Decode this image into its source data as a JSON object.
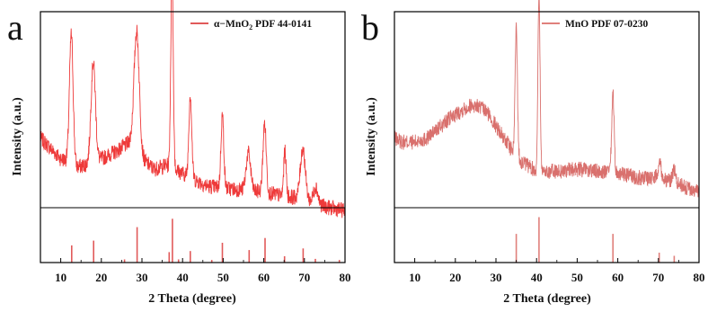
{
  "chart_data": [
    {
      "type": "line",
      "panel_label": "a",
      "xlabel": "2 Theta (degree)",
      "ylabel": "Intensity (a.u.)",
      "xlim": [
        5,
        80
      ],
      "xticks": [
        10,
        20,
        30,
        40,
        50,
        60,
        70,
        80
      ],
      "y_tick_labels_shown": false,
      "series": [
        {
          "name": "",
          "color": "#ee3a3a",
          "baseline_points": [
            [
              5,
              0.4
            ],
            [
              8,
              0.34
            ],
            [
              10,
              0.3
            ],
            [
              12,
              0.29
            ],
            [
              14,
              0.26
            ],
            [
              16,
              0.27
            ],
            [
              20,
              0.3
            ],
            [
              24,
              0.34
            ],
            [
              27,
              0.38
            ],
            [
              30,
              0.3
            ],
            [
              33,
              0.25
            ],
            [
              36,
              0.27
            ],
            [
              39,
              0.24
            ],
            [
              42,
              0.21
            ],
            [
              46,
              0.17
            ],
            [
              50,
              0.16
            ],
            [
              55,
              0.15
            ],
            [
              60,
              0.14
            ],
            [
              65,
              0.12
            ],
            [
              70,
              0.11
            ],
            [
              75,
              0.07
            ],
            [
              80,
              0.05
            ]
          ],
          "peaks": [
            {
              "x": 12.6,
              "height": 0.62,
              "width": 0.45
            },
            {
              "x": 18.0,
              "height": 0.48,
              "width": 0.55
            },
            {
              "x": 28.7,
              "height": 0.58,
              "width": 0.65
            },
            {
              "x": 37.4,
              "height": 0.94,
              "width": 0.3
            },
            {
              "x": 41.9,
              "height": 0.4,
              "width": 0.35
            },
            {
              "x": 49.8,
              "height": 0.35,
              "width": 0.35
            },
            {
              "x": 56.2,
              "height": 0.18,
              "width": 0.55
            },
            {
              "x": 60.2,
              "height": 0.33,
              "width": 0.4
            },
            {
              "x": 65.2,
              "height": 0.22,
              "width": 0.3
            },
            {
              "x": 69.6,
              "height": 0.24,
              "width": 0.6
            },
            {
              "x": 72.8,
              "height": 0.08,
              "width": 0.5
            }
          ]
        }
      ],
      "reference": {
        "name_prefix": "α−MnO",
        "name_subscript": "2",
        "name_suffix": " PDF 44-0141",
        "color": "#e15a5a",
        "lines": [
          [
            12.7,
            0.33
          ],
          [
            18.1,
            0.42
          ],
          [
            25.7,
            0.06
          ],
          [
            28.8,
            0.68
          ],
          [
            36.7,
            0.2
          ],
          [
            37.5,
            0.84
          ],
          [
            39.0,
            0.06
          ],
          [
            41.9,
            0.22
          ],
          [
            47.2,
            0.05
          ],
          [
            49.8,
            0.38
          ],
          [
            56.4,
            0.24
          ],
          [
            60.3,
            0.47
          ],
          [
            65.1,
            0.12
          ],
          [
            69.7,
            0.27
          ],
          [
            72.7,
            0.07
          ],
          [
            78.6,
            0.05
          ]
        ]
      }
    },
    {
      "type": "line",
      "panel_label": "b",
      "xlabel": "2 Theta (degree)",
      "ylabel": "Intensity (a.u.)",
      "xlim": [
        5,
        80
      ],
      "xticks": [
        10,
        20,
        30,
        40,
        50,
        60,
        70,
        80
      ],
      "y_tick_labels_shown": false,
      "series": [
        {
          "name": "",
          "color": "#d9706d",
          "baseline_points": [
            [
              5,
              0.4
            ],
            [
              7,
              0.38
            ],
            [
              10,
              0.38
            ],
            [
              13,
              0.4
            ],
            [
              16,
              0.45
            ],
            [
              19,
              0.5
            ],
            [
              22,
              0.54
            ],
            [
              24,
              0.56
            ],
            [
              26,
              0.55
            ],
            [
              28,
              0.52
            ],
            [
              30,
              0.46
            ],
            [
              32,
              0.4
            ],
            [
              34,
              0.34
            ],
            [
              36,
              0.29
            ],
            [
              40,
              0.24
            ],
            [
              45,
              0.24
            ],
            [
              50,
              0.25
            ],
            [
              55,
              0.24
            ],
            [
              60,
              0.23
            ],
            [
              65,
              0.21
            ],
            [
              70,
              0.21
            ],
            [
              75,
              0.18
            ],
            [
              78,
              0.15
            ],
            [
              80,
              0.14
            ]
          ],
          "peaks": [
            {
              "x": 35.0,
              "height": 0.62,
              "width": 0.28
            },
            {
              "x": 40.6,
              "height": 0.86,
              "width": 0.26
            },
            {
              "x": 58.8,
              "height": 0.38,
              "width": 0.3
            },
            {
              "x": 70.3,
              "height": 0.08,
              "width": 0.4
            },
            {
              "x": 73.8,
              "height": 0.06,
              "width": 0.4
            }
          ]
        }
      ],
      "reference": {
        "name_prefix": "MnO PDF 07-0230",
        "name_subscript": "",
        "name_suffix": "",
        "color": "#e0807c",
        "lines": [
          [
            35.0,
            0.55
          ],
          [
            40.6,
            0.87
          ],
          [
            58.8,
            0.55
          ],
          [
            70.2,
            0.19
          ],
          [
            73.9,
            0.13
          ]
        ]
      }
    }
  ]
}
